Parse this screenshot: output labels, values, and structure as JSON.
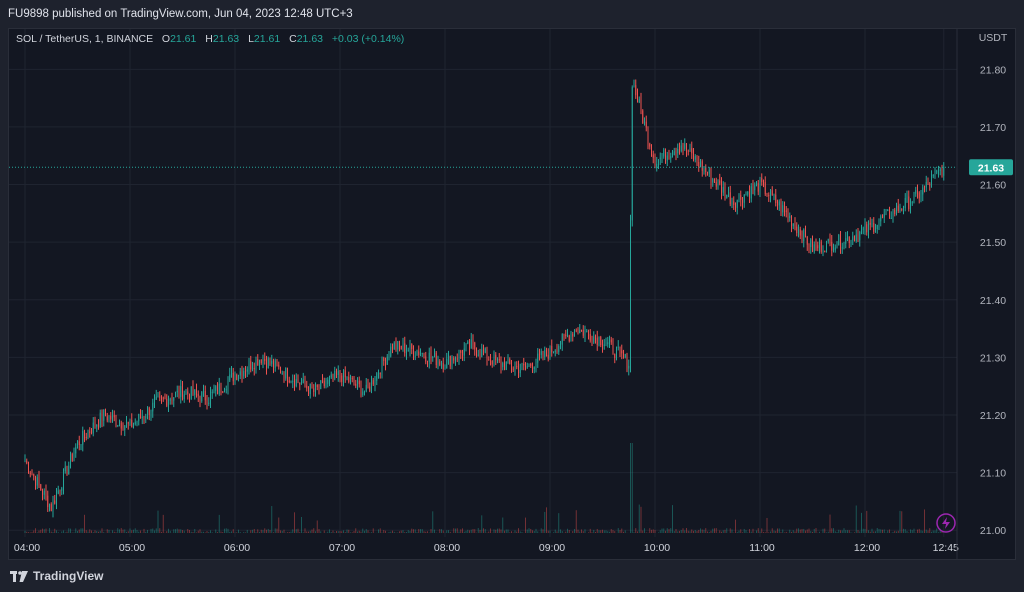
{
  "header": {
    "published": "FU9898 published on TradingView.com, Jun 04, 2023 12:48 UTC+3"
  },
  "legend": {
    "symbol": "SOL / TetherUS, 1, BINANCE",
    "o_label": "O",
    "o": "21.61",
    "h_label": "H",
    "h": "21.63",
    "l_label": "L",
    "l": "21.61",
    "c_label": "C",
    "c": "21.63",
    "change": "+0.03 (+0.14%)"
  },
  "brand": {
    "name": "TradingView"
  },
  "colors": {
    "up": "#26a69a",
    "down": "#ef5350",
    "bg": "#131722",
    "grid": "#1f2430",
    "accent": "#9c27b0"
  },
  "icons": {
    "replay": "lightning-icon",
    "logo": "tradingview-logo-icon"
  },
  "chart_data": {
    "type": "candlestick",
    "currency": "USDT",
    "last_price": "21.63",
    "ylim": [
      20.95,
      21.87
    ],
    "y_ticks": [
      "21.00",
      "21.10",
      "21.20",
      "21.30",
      "21.40",
      "21.50",
      "21.60",
      "21.70",
      "21.80"
    ],
    "x_ticks": [
      "04:00",
      "05:00",
      "06:00",
      "07:00",
      "08:00",
      "09:00",
      "10:00",
      "11:00",
      "12:00",
      "12:45"
    ],
    "x": [
      "04:00",
      "04:15",
      "04:30",
      "04:45",
      "05:00",
      "05:15",
      "05:30",
      "05:45",
      "06:00",
      "06:15",
      "06:30",
      "06:45",
      "07:00",
      "07:15",
      "07:30",
      "07:45",
      "08:00",
      "08:15",
      "08:30",
      "08:45",
      "09:00",
      "09:15",
      "09:30",
      "09:45",
      "09:47",
      "10:00",
      "10:15",
      "10:30",
      "10:45",
      "11:00",
      "11:15",
      "11:30",
      "11:45",
      "12:00",
      "12:15",
      "12:30",
      "12:45"
    ],
    "close": [
      21.12,
      21.04,
      21.15,
      21.2,
      21.18,
      21.22,
      21.24,
      21.23,
      21.27,
      21.3,
      21.27,
      21.24,
      21.27,
      21.24,
      21.32,
      21.31,
      21.29,
      21.32,
      21.29,
      21.28,
      21.31,
      21.35,
      21.33,
      21.29,
      21.78,
      21.64,
      21.67,
      21.62,
      21.57,
      21.6,
      21.55,
      21.49,
      21.5,
      21.52,
      21.55,
      21.58,
      21.63
    ]
  }
}
